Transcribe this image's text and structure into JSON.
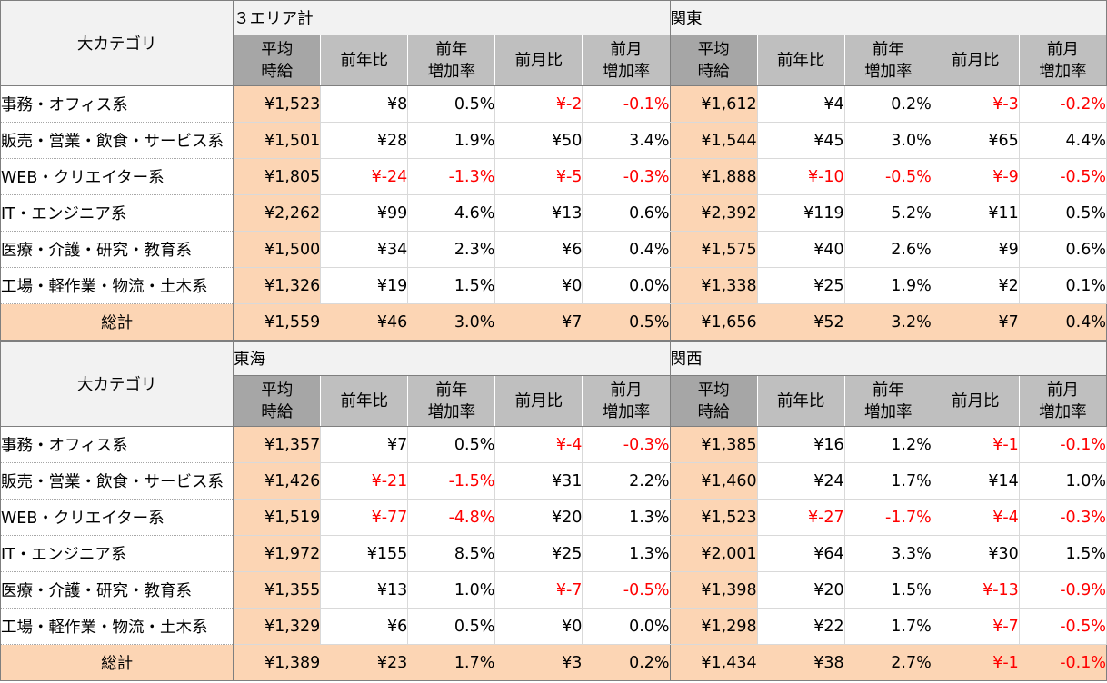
{
  "category_header": "大カテゴリ",
  "column_headers": {
    "avg_wage": [
      "平均",
      "時給"
    ],
    "yoy": "前年比",
    "yoy_rate": [
      "前年",
      "増加率"
    ],
    "mom": "前月比",
    "mom_rate": [
      "前月",
      "増加率"
    ]
  },
  "colors": {
    "header_bg": "#f2f2f2",
    "subheader_bg": "#bfbfbf",
    "avg_col_bg": "#fcd5b4",
    "negative_text": "#ff0000"
  },
  "blocks": [
    {
      "areas": [
        {
          "name": "３エリア計",
          "rows": [
            [
              "¥1,523",
              "¥8",
              "0.5%",
              "¥-2",
              "-0.1%"
            ],
            [
              "¥1,501",
              "¥28",
              "1.9%",
              "¥50",
              "3.4%"
            ],
            [
              "¥1,805",
              "¥-24",
              "-1.3%",
              "¥-5",
              "-0.3%"
            ],
            [
              "¥2,262",
              "¥99",
              "4.6%",
              "¥13",
              "0.6%"
            ],
            [
              "¥1,500",
              "¥34",
              "2.3%",
              "¥6",
              "0.4%"
            ],
            [
              "¥1,326",
              "¥19",
              "1.5%",
              "¥0",
              "0.0%"
            ]
          ],
          "total": [
            "¥1,559",
            "¥46",
            "3.0%",
            "¥7",
            "0.5%"
          ]
        },
        {
          "name": "関東",
          "rows": [
            [
              "¥1,612",
              "¥4",
              "0.2%",
              "¥-3",
              "-0.2%"
            ],
            [
              "¥1,544",
              "¥45",
              "3.0%",
              "¥65",
              "4.4%"
            ],
            [
              "¥1,888",
              "¥-10",
              "-0.5%",
              "¥-9",
              "-0.5%"
            ],
            [
              "¥2,392",
              "¥119",
              "5.2%",
              "¥11",
              "0.5%"
            ],
            [
              "¥1,575",
              "¥40",
              "2.6%",
              "¥9",
              "0.6%"
            ],
            [
              "¥1,338",
              "¥25",
              "1.9%",
              "¥2",
              "0.1%"
            ]
          ],
          "total": [
            "¥1,656",
            "¥52",
            "3.2%",
            "¥7",
            "0.4%"
          ]
        }
      ]
    },
    {
      "areas": [
        {
          "name": "東海",
          "rows": [
            [
              "¥1,357",
              "¥7",
              "0.5%",
              "¥-4",
              "-0.3%"
            ],
            [
              "¥1,426",
              "¥-21",
              "-1.5%",
              "¥31",
              "2.2%"
            ],
            [
              "¥1,519",
              "¥-77",
              "-4.8%",
              "¥20",
              "1.3%"
            ],
            [
              "¥1,972",
              "¥155",
              "8.5%",
              "¥25",
              "1.3%"
            ],
            [
              "¥1,355",
              "¥13",
              "1.0%",
              "¥-7",
              "-0.5%"
            ],
            [
              "¥1,329",
              "¥6",
              "0.5%",
              "¥0",
              "0.0%"
            ]
          ],
          "total": [
            "¥1,389",
            "¥23",
            "1.7%",
            "¥3",
            "0.2%"
          ]
        },
        {
          "name": "関西",
          "rows": [
            [
              "¥1,385",
              "¥16",
              "1.2%",
              "¥-1",
              "-0.1%"
            ],
            [
              "¥1,460",
              "¥24",
              "1.7%",
              "¥14",
              "1.0%"
            ],
            [
              "¥1,523",
              "¥-27",
              "-1.7%",
              "¥-4",
              "-0.3%"
            ],
            [
              "¥2,001",
              "¥64",
              "3.3%",
              "¥30",
              "1.5%"
            ],
            [
              "¥1,398",
              "¥20",
              "1.5%",
              "¥-13",
              "-0.9%"
            ],
            [
              "¥1,298",
              "¥22",
              "1.7%",
              "¥-7",
              "-0.5%"
            ]
          ],
          "total": [
            "¥1,434",
            "¥38",
            "2.7%",
            "¥-1",
            "-0.1%"
          ]
        }
      ]
    }
  ],
  "categories": [
    "事務・オフィス系",
    "販売・営業・飲食・サービス系",
    "WEB・クリエイター系",
    "IT・エンジニア系",
    "医療・介護・研究・教育系",
    "工場・軽作業・物流・土木系"
  ],
  "total_label": "総計"
}
